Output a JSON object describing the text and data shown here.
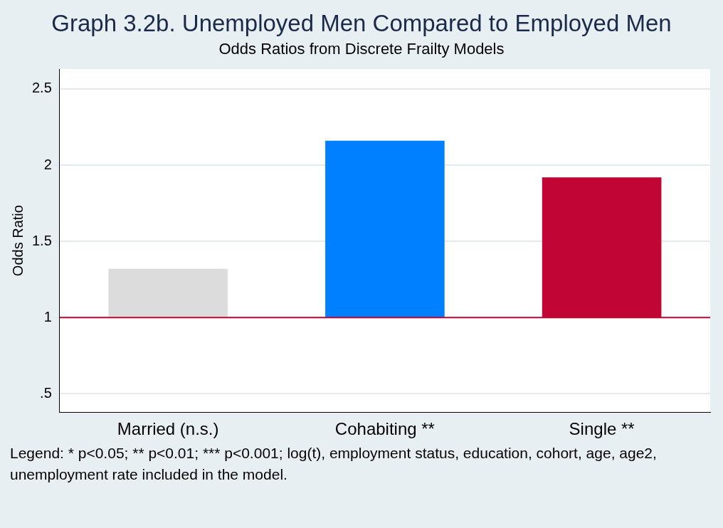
{
  "chart_data": {
    "type": "bar",
    "title": "Graph 3.2b. Unemployed Men Compared to Employed Men",
    "subtitle": "Odds Ratios from Discrete Frailty Models",
    "ylabel": "Odds Ratio",
    "categories": [
      "Married (n.s.)",
      "Cohabiting **",
      "Single **"
    ],
    "values": [
      0.32,
      1.16,
      0.92
    ],
    "base": [
      1,
      1,
      1
    ],
    "colors": [
      "#dcdcdc",
      "#0080ff",
      "#c10534"
    ],
    "ylim": [
      0.38,
      2.63
    ],
    "yticks": [
      {
        "value": 0.5,
        "label": ".5"
      },
      1,
      1.5,
      2,
      2.5
    ],
    "grid": "y",
    "legend": false,
    "ref_lines": [
      {
        "axis": "y",
        "value": 1,
        "color": "#c10534"
      }
    ],
    "annotations": [
      "Legend: * p<0.05; ** p<0.01; *** p<0.001; log(t), employment status, education, cohort, age, age2, unemployment rate included in the model."
    ]
  }
}
